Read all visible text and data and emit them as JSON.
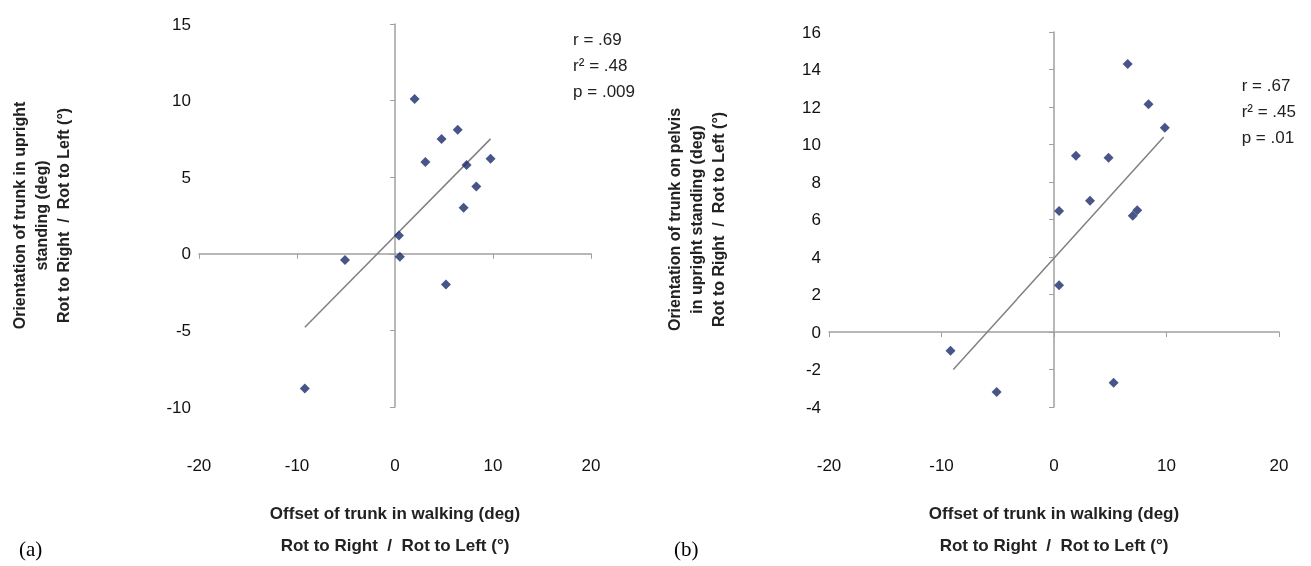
{
  "chart_data": [
    {
      "type": "scatter",
      "title": "(a)",
      "xlabel": "Offset of trunk in walking (deg)\nRot to Right  /  Rot to Left (°)",
      "ylabel": "Orientation of trunk in upright\nstanding (deg)\nRot to Right  /  Rot to Left (°)",
      "annotations": [
        "r = .69",
        "r² = .48",
        "p = .009"
      ],
      "xlim": [
        -20,
        20
      ],
      "xticks": [
        -20,
        -10,
        0,
        10,
        20
      ],
      "ylim": [
        -10,
        15
      ],
      "yticks": [
        -10,
        -5,
        0,
        5,
        10,
        15
      ],
      "series": [
        {
          "marker": "diamond",
          "color": "#1a2a6c",
          "x": [
            2,
            6.4,
            4.75,
            3.1,
            7.3,
            9.75,
            8.3,
            7,
            0.4,
            0.5,
            -5.1,
            5.2,
            -9.2
          ],
          "values": [
            10.1,
            8.1,
            7.5,
            6,
            5.8,
            6.2,
            4.4,
            3,
            1.2,
            -0.2,
            -0.4,
            -2,
            -8.8
          ]
        },
        {
          "type": "line",
          "marker": "none",
          "line_style": "solid",
          "color": "#808080",
          "x": [
            -9.2,
            9.75
          ],
          "values": [
            -4.8,
            7.5
          ]
        }
      ]
    },
    {
      "type": "scatter",
      "title": "(b)",
      "xlabel": "Offset of trunk in walking (deg)\nRot to Right  /  Rot to Left (°)",
      "ylabel": "Orientation of trunk on pelvis\nin upright standing (deg)\nRot to Right  /  Rot to Left (°)",
      "annotations": [
        "r = .67",
        "r² = .45",
        "p = .01"
      ],
      "xlim": [
        -20,
        20
      ],
      "xticks": [
        -20,
        -10,
        0,
        10,
        20
      ],
      "ylim": [
        -4,
        16
      ],
      "yticks": [
        -4,
        -2,
        0,
        2,
        4,
        6,
        8,
        10,
        12,
        14,
        16
      ],
      "series": [
        {
          "marker": "diamond",
          "color": "#1a2a6c",
          "x": [
            6.55,
            8.4,
            9.85,
            1.95,
            4.85,
            3.2,
            0.45,
            7,
            7.4,
            0.45,
            -9.2,
            -5.1,
            5.3
          ],
          "values": [
            14.3,
            12.15,
            10.9,
            9.4,
            9.3,
            7,
            6.45,
            6.2,
            6.5,
            2.5,
            -1,
            -3.2,
            -2.7
          ]
        },
        {
          "type": "line",
          "marker": "none",
          "line_style": "solid",
          "color": "#808080",
          "x": [
            -8.95,
            9.75
          ],
          "values": [
            -2,
            10.4
          ]
        }
      ]
    }
  ]
}
